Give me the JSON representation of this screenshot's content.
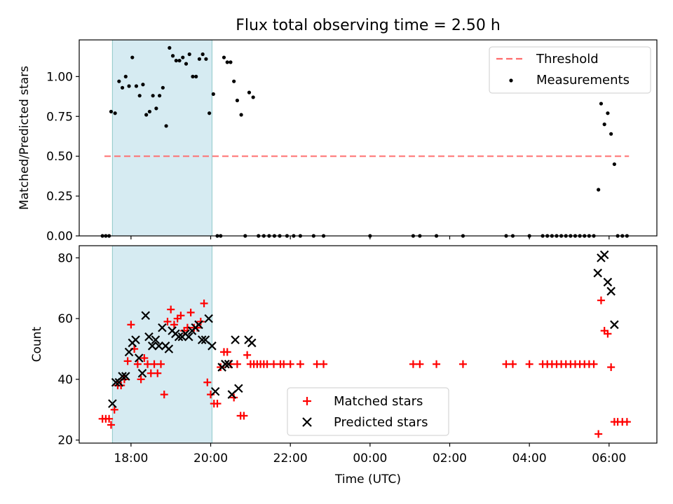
{
  "chart_data": [
    {
      "type": "scatter",
      "title": "Flux total observing time = 2.50 h",
      "ylabel": "Matched/Predicted stars",
      "ylim": [
        0,
        1.23
      ],
      "xlim_hours": [
        16.7,
        31.2
      ],
      "yticks": [
        "0.00",
        "0.25",
        "0.50",
        "0.75",
        "1.00"
      ],
      "ytick_values": [
        0,
        0.25,
        0.5,
        0.75,
        1.0
      ],
      "shaded_span": {
        "from": "17:32",
        "to": "20:02",
        "color": "#add8e6"
      },
      "threshold": {
        "name": "Threshold",
        "value": 0.5,
        "from": "17:20",
        "to": "06:30",
        "color": "#ff6b6b"
      },
      "legend": {
        "placement": "upper right",
        "entries": [
          "Threshold",
          "Measurements"
        ]
      },
      "series": [
        {
          "name": "Measurements",
          "color": "#000000",
          "points": [
            [
              "17:17",
              0.0
            ],
            [
              "17:22",
              0.0
            ],
            [
              "17:27",
              0.0
            ],
            [
              "17:30",
              0.78
            ],
            [
              "17:36",
              0.77
            ],
            [
              "17:42",
              0.97
            ],
            [
              "17:47",
              0.93
            ],
            [
              "17:52",
              1.0
            ],
            [
              "17:57",
              0.94
            ],
            [
              "18:02",
              1.12
            ],
            [
              "18:08",
              0.94
            ],
            [
              "18:13",
              0.88
            ],
            [
              "18:18",
              0.95
            ],
            [
              "18:23",
              0.76
            ],
            [
              "18:28",
              0.78
            ],
            [
              "18:33",
              0.88
            ],
            [
              "18:38",
              0.8
            ],
            [
              "18:43",
              0.88
            ],
            [
              "18:48",
              0.93
            ],
            [
              "18:53",
              0.69
            ],
            [
              "18:58",
              1.18
            ],
            [
              "19:03",
              1.13
            ],
            [
              "19:08",
              1.1
            ],
            [
              "19:13",
              1.1
            ],
            [
              "19:18",
              1.12
            ],
            [
              "19:23",
              1.08
            ],
            [
              "19:28",
              1.14
            ],
            [
              "19:33",
              1.0
            ],
            [
              "19:38",
              1.0
            ],
            [
              "19:43",
              1.11
            ],
            [
              "19:48",
              1.14
            ],
            [
              "19:53",
              1.11
            ],
            [
              "19:58",
              0.77
            ],
            [
              "20:04",
              0.89
            ],
            [
              "20:10",
              0.0
            ],
            [
              "20:15",
              0.0
            ],
            [
              "20:20",
              1.12
            ],
            [
              "20:25",
              1.09
            ],
            [
              "20:30",
              1.09
            ],
            [
              "20:35",
              0.97
            ],
            [
              "20:40",
              0.85
            ],
            [
              "20:46",
              0.76
            ],
            [
              "20:52",
              0.0
            ],
            [
              "20:58",
              0.9
            ],
            [
              "21:04",
              0.87
            ],
            [
              "21:12",
              0.0
            ],
            [
              "21:20",
              0.0
            ],
            [
              "21:28",
              0.0
            ],
            [
              "21:36",
              0.0
            ],
            [
              "21:44",
              0.0
            ],
            [
              "21:55",
              0.0
            ],
            [
              "22:05",
              0.0
            ],
            [
              "22:15",
              0.0
            ],
            [
              "22:35",
              0.0
            ],
            [
              "22:50",
              0.0
            ],
            [
              "00:00",
              0.0
            ],
            [
              "01:05",
              0.0
            ],
            [
              "01:15",
              0.0
            ],
            [
              "01:40",
              0.0
            ],
            [
              "02:20",
              0.0
            ],
            [
              "03:25",
              0.0
            ],
            [
              "03:35",
              0.0
            ],
            [
              "04:00",
              0.0
            ],
            [
              "04:20",
              0.0
            ],
            [
              "04:27",
              0.0
            ],
            [
              "04:34",
              0.0
            ],
            [
              "04:41",
              0.0
            ],
            [
              "04:48",
              0.0
            ],
            [
              "04:55",
              0.0
            ],
            [
              "05:02",
              0.0
            ],
            [
              "05:09",
              0.0
            ],
            [
              "05:16",
              0.0
            ],
            [
              "05:23",
              0.0
            ],
            [
              "05:30",
              0.0
            ],
            [
              "05:37",
              0.0
            ],
            [
              "05:44",
              0.29
            ],
            [
              "05:48",
              0.83
            ],
            [
              "05:53",
              0.7
            ],
            [
              "05:58",
              0.77
            ],
            [
              "06:03",
              0.64
            ],
            [
              "06:08",
              0.45
            ],
            [
              "06:13",
              0.0
            ],
            [
              "06:20",
              0.0
            ],
            [
              "06:27",
              0.0
            ]
          ]
        }
      ]
    },
    {
      "type": "scatter",
      "xlabel": "Time (UTC)",
      "ylabel": "Count",
      "ylim": [
        19,
        84
      ],
      "xlim_hours": [
        16.7,
        31.2
      ],
      "xticks": [
        "18:00",
        "20:00",
        "22:00",
        "00:00",
        "02:00",
        "04:00",
        "06:00"
      ],
      "xtick_hours": [
        18,
        20,
        22,
        24,
        26,
        28,
        30
      ],
      "yticks": [
        "20",
        "40",
        "60",
        "80"
      ],
      "ytick_values": [
        20,
        40,
        60,
        80
      ],
      "shaded_span": {
        "from": "17:32",
        "to": "20:02",
        "color": "#add8e6"
      },
      "legend": {
        "placement": "lower center",
        "entries": [
          "Matched stars",
          "Predicted stars"
        ]
      },
      "series": [
        {
          "name": "Matched stars",
          "marker": "+",
          "color": "#ff0000",
          "points": [
            [
              "17:17",
              27
            ],
            [
              "17:22",
              27
            ],
            [
              "17:27",
              27
            ],
            [
              "17:30",
              25
            ],
            [
              "17:35",
              30
            ],
            [
              "17:40",
              38
            ],
            [
              "17:45",
              38
            ],
            [
              "17:50",
              40
            ],
            [
              "17:55",
              46
            ],
            [
              "18:00",
              58
            ],
            [
              "18:05",
              50
            ],
            [
              "18:10",
              45
            ],
            [
              "18:15",
              40
            ],
            [
              "18:20",
              47
            ],
            [
              "18:25",
              45
            ],
            [
              "18:30",
              42
            ],
            [
              "18:35",
              45
            ],
            [
              "18:40",
              42
            ],
            [
              "18:45",
              45
            ],
            [
              "18:50",
              35
            ],
            [
              "18:55",
              59
            ],
            [
              "19:00",
              63
            ],
            [
              "19:05",
              58
            ],
            [
              "19:10",
              60
            ],
            [
              "19:15",
              61
            ],
            [
              "19:20",
              56
            ],
            [
              "19:25",
              57
            ],
            [
              "19:30",
              62
            ],
            [
              "19:35",
              57
            ],
            [
              "19:40",
              57
            ],
            [
              "19:45",
              59
            ],
            [
              "19:50",
              65
            ],
            [
              "19:55",
              39
            ],
            [
              "20:00",
              35
            ],
            [
              "20:05",
              32
            ],
            [
              "20:10",
              32
            ],
            [
              "20:15",
              44
            ],
            [
              "20:20",
              49
            ],
            [
              "20:25",
              49
            ],
            [
              "20:30",
              45
            ],
            [
              "20:35",
              34
            ],
            [
              "20:40",
              45
            ],
            [
              "20:45",
              28
            ],
            [
              "20:50",
              28
            ],
            [
              "20:55",
              48
            ],
            [
              "21:00",
              45
            ],
            [
              "21:05",
              45
            ],
            [
              "21:10",
              45
            ],
            [
              "21:15",
              45
            ],
            [
              "21:20",
              45
            ],
            [
              "21:25",
              45
            ],
            [
              "21:35",
              45
            ],
            [
              "21:45",
              45
            ],
            [
              "21:50",
              45
            ],
            [
              "22:00",
              45
            ],
            [
              "22:15",
              45
            ],
            [
              "22:40",
              45
            ],
            [
              "22:50",
              45
            ],
            [
              "01:05",
              45
            ],
            [
              "01:15",
              45
            ],
            [
              "01:40",
              45
            ],
            [
              "02:20",
              45
            ],
            [
              "03:25",
              45
            ],
            [
              "03:35",
              45
            ],
            [
              "04:00",
              45
            ],
            [
              "04:20",
              45
            ],
            [
              "04:27",
              45
            ],
            [
              "04:34",
              45
            ],
            [
              "04:41",
              45
            ],
            [
              "04:48",
              45
            ],
            [
              "04:55",
              45
            ],
            [
              "05:02",
              45
            ],
            [
              "05:09",
              45
            ],
            [
              "05:16",
              45
            ],
            [
              "05:23",
              45
            ],
            [
              "05:30",
              45
            ],
            [
              "05:37",
              45
            ],
            [
              "05:44",
              22
            ],
            [
              "05:48",
              66
            ],
            [
              "05:53",
              56
            ],
            [
              "05:58",
              55
            ],
            [
              "06:03",
              44
            ],
            [
              "06:08",
              26
            ],
            [
              "06:13",
              26
            ],
            [
              "06:20",
              26
            ],
            [
              "06:27",
              26
            ]
          ]
        },
        {
          "name": "Predicted stars",
          "marker": "x",
          "color": "#000000",
          "points": [
            [
              "17:32",
              32
            ],
            [
              "17:37",
              39
            ],
            [
              "17:42",
              39
            ],
            [
              "17:47",
              41
            ],
            [
              "17:52",
              41
            ],
            [
              "17:57",
              49
            ],
            [
              "18:02",
              52
            ],
            [
              "18:07",
              53
            ],
            [
              "18:12",
              47
            ],
            [
              "18:17",
              42
            ],
            [
              "18:22",
              61
            ],
            [
              "18:27",
              54
            ],
            [
              "18:32",
              51
            ],
            [
              "18:37",
              53
            ],
            [
              "18:42",
              51
            ],
            [
              "18:47",
              57
            ],
            [
              "18:52",
              51
            ],
            [
              "18:57",
              50
            ],
            [
              "19:02",
              56
            ],
            [
              "19:07",
              55
            ],
            [
              "19:12",
              54
            ],
            [
              "19:17",
              54
            ],
            [
              "19:22",
              55
            ],
            [
              "19:27",
              54
            ],
            [
              "19:32",
              56
            ],
            [
              "19:37",
              57
            ],
            [
              "19:42",
              58
            ],
            [
              "19:47",
              53
            ],
            [
              "19:52",
              53
            ],
            [
              "19:57",
              60
            ],
            [
              "20:02",
              51
            ],
            [
              "20:07",
              36
            ],
            [
              "20:17",
              44
            ],
            [
              "20:22",
              45
            ],
            [
              "20:27",
              45
            ],
            [
              "20:32",
              35
            ],
            [
              "20:37",
              53
            ],
            [
              "20:42",
              37
            ],
            [
              "20:57",
              53
            ],
            [
              "21:02",
              52
            ],
            [
              "05:43",
              75
            ],
            [
              "05:48",
              80
            ],
            [
              "05:53",
              81
            ],
            [
              "05:58",
              72
            ],
            [
              "06:03",
              69
            ],
            [
              "06:08",
              58
            ]
          ]
        }
      ]
    }
  ]
}
